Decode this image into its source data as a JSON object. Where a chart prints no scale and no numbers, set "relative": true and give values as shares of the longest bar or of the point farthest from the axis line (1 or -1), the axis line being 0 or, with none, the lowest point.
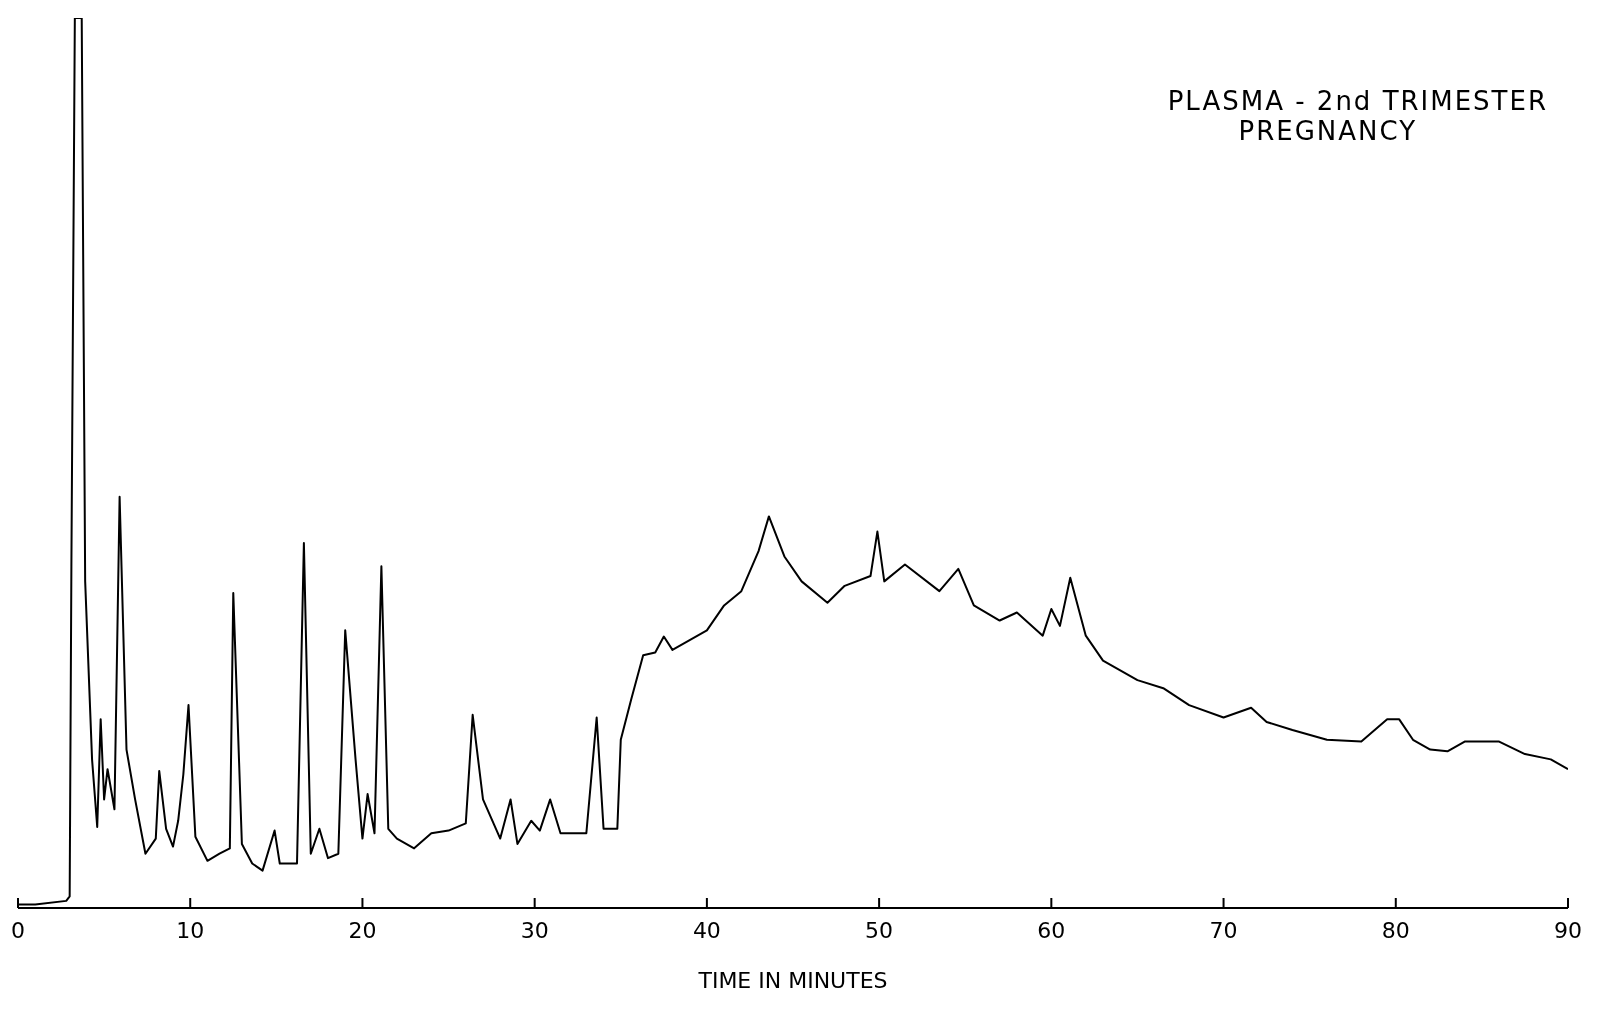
{
  "chart_data": {
    "type": "line",
    "title": "PLASMA - 2nd TRIMESTER",
    "subtitle": "PREGNANCY",
    "xlabel": "TIME IN MINUTES",
    "relative": true,
    "xlim": [
      0,
      90
    ],
    "xticks": [
      0,
      10,
      20,
      30,
      40,
      50,
      60,
      70,
      80,
      90
    ],
    "tick_labels": "x",
    "marker": "none",
    "line_style": "solid",
    "x": [
      0,
      1,
      2.8,
      3.0,
      3.1,
      3.3,
      3.7,
      3.9,
      4.3,
      4.6,
      4.8,
      5.0,
      5.2,
      5.6,
      5.9,
      6.3,
      6.8,
      7.4,
      8.0,
      8.2,
      8.6,
      9.0,
      9.3,
      9.6,
      9.9,
      10.3,
      11.0,
      11.7,
      12.3,
      12.5,
      13.0,
      13.6,
      14.2,
      14.9,
      15.2,
      16.2,
      16.6,
      17.0,
      17.5,
      18.0,
      18.6,
      19.0,
      19.6,
      20.0,
      20.3,
      20.7,
      21.1,
      21.5,
      22.0,
      23.0,
      24.0,
      25.0,
      26.0,
      26.4,
      27.0,
      28.0,
      28.6,
      29.0,
      29.8,
      30.3,
      30.9,
      31.5,
      33.0,
      33.6,
      34.0,
      34.8,
      35.0,
      35.6,
      36.3,
      37.0,
      37.5,
      38.0,
      39.0,
      40.0,
      41.0,
      42.0,
      43.0,
      43.6,
      44.5,
      45.5,
      47.0,
      48.0,
      49.5,
      49.9,
      50.3,
      51.5,
      53.5,
      54.6,
      55.5,
      57.0,
      58.0,
      59.5,
      60.0,
      60.5,
      61.1,
      62.0,
      63.0,
      65.0,
      66.5,
      68.0,
      70.0,
      71.6,
      72.5,
      74.0,
      76.0,
      78.0,
      79.5,
      80.2,
      81.0,
      82.0,
      83.0,
      84.0,
      86.0,
      87.5,
      89.0,
      90.0
    ],
    "series": [
      {
        "color": "#000000",
        "values": [
          0.004,
          0.004,
          0.008,
          0.013,
          0.384,
          1,
          1,
          0.367,
          0.167,
          0.091,
          0.212,
          0.122,
          0.156,
          0.111,
          0.462,
          0.178,
          0.122,
          0.061,
          0.078,
          0.154,
          0.089,
          0.069,
          0.098,
          0.15,
          0.228,
          0.08,
          0.053,
          0.061,
          0.067,
          0.354,
          0.072,
          0.05,
          0.042,
          0.087,
          0.05,
          0.05,
          0.41,
          0.061,
          0.089,
          0.056,
          0.061,
          0.312,
          0.167,
          0.078,
          0.128,
          0.084,
          0.384,
          0.089,
          0.078,
          0.067,
          0.084,
          0.087,
          0.095,
          0.217,
          0.122,
          0.078,
          0.122,
          0.072,
          0.098,
          0.087,
          0.122,
          0.084,
          0.084,
          0.214,
          0.089,
          0.089,
          0.189,
          0.234,
          0.284,
          0.287,
          0.305,
          0.29,
          0.301,
          0.312,
          0.34,
          0.356,
          0.401,
          0.44,
          0.395,
          0.367,
          0.343,
          0.362,
          0.373,
          0.423,
          0.367,
          0.386,
          0.356,
          0.381,
          0.34,
          0.323,
          0.332,
          0.306,
          0.336,
          0.317,
          0.371,
          0.306,
          0.278,
          0.256,
          0.247,
          0.228,
          0.214,
          0.225,
          0.209,
          0.2,
          0.189,
          0.187,
          0.212,
          0.212,
          0.189,
          0.178,
          0.176,
          0.187,
          0.187,
          0.173,
          0.167,
          0.156
        ]
      }
    ]
  }
}
